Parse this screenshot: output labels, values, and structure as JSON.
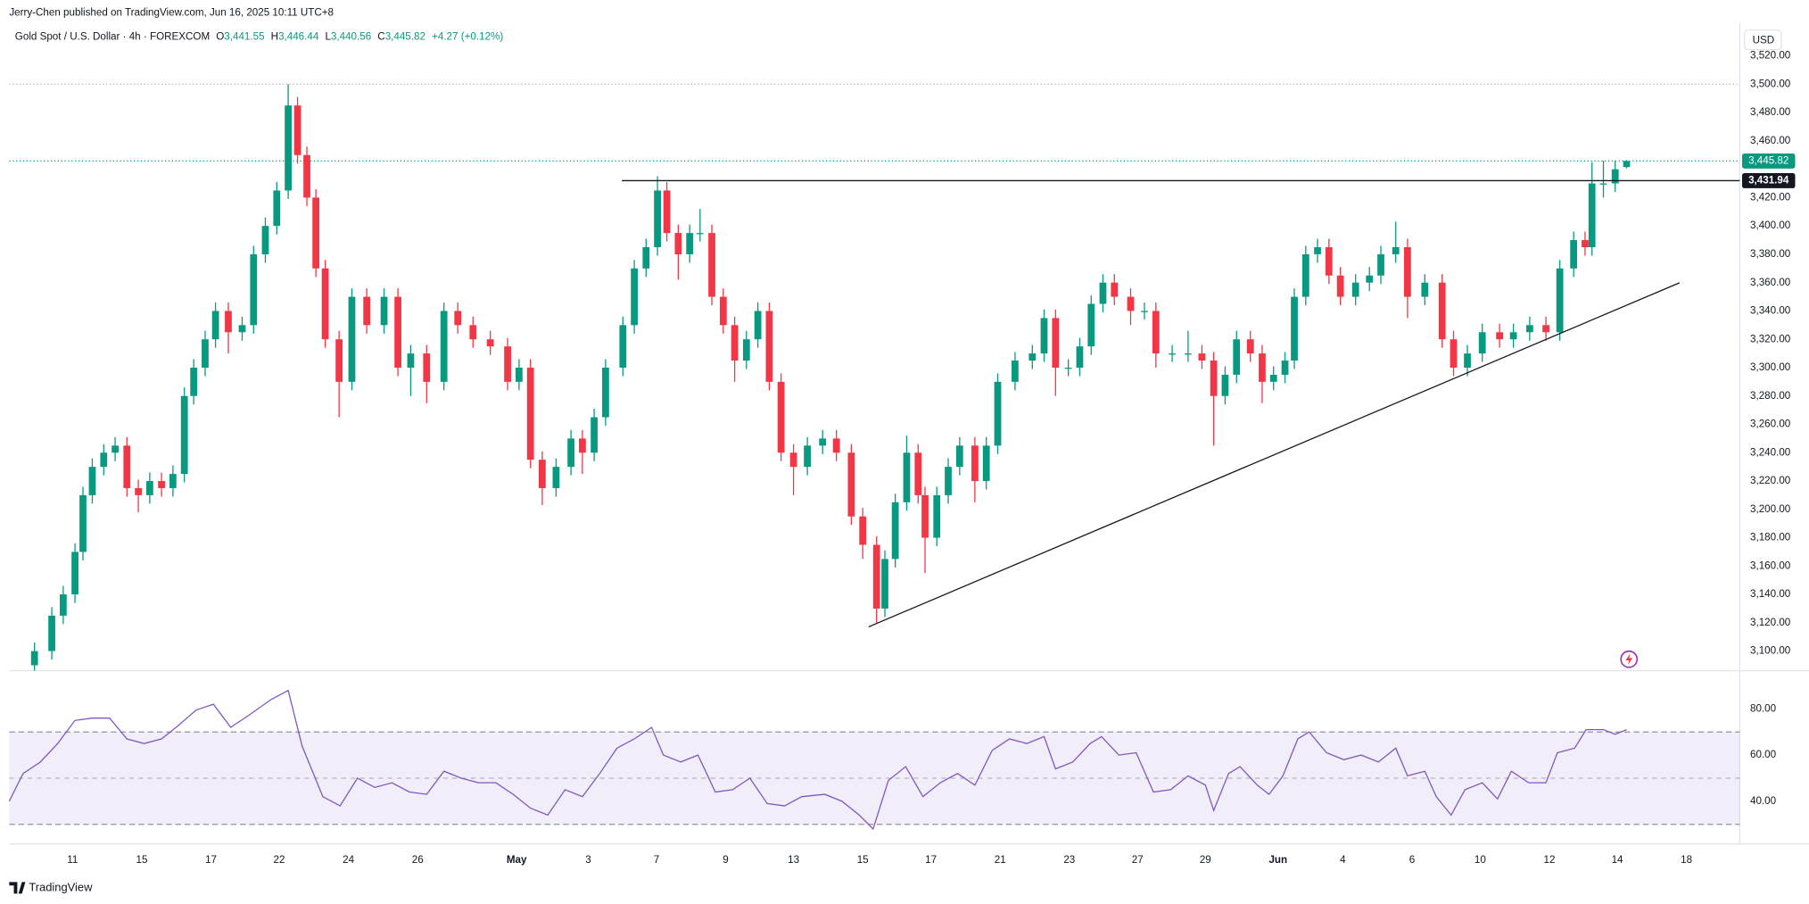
{
  "publisher_note": "Jerry-Chen published on TradingView.com, Jun 16, 2025 10:11 UTC+8",
  "brand": "TradingView",
  "chart_data": [
    {
      "type": "candlestick",
      "symbol": "Gold Spot / U.S. Dollar · 4h · FOREXCOM",
      "ohlc_legend": [
        {
          "label": "O",
          "value": "3,441.55"
        },
        {
          "label": "H",
          "value": "3,446.44"
        },
        {
          "label": "L",
          "value": "3,440.56"
        },
        {
          "label": "C",
          "value": "3,445.82"
        }
      ],
      "change": "+4.27 (+0.12%)",
      "currency": "USD",
      "up_color": "#089981",
      "down_color": "#f23645",
      "x": [
        -0.1,
        0.4,
        0.73,
        1.07,
        1.3,
        1.57,
        1.9,
        2.23,
        2.57,
        2.9,
        3.23,
        3.57,
        3.9,
        4.23,
        4.5,
        4.83,
        5.13,
        5.5,
        5.9,
        6.23,
        6.57,
        6.9,
        7.23,
        7.5,
        7.77,
        8.03,
        8.3,
        8.7,
        9.07,
        9.5,
        10,
        10.4,
        10.77,
        11.23,
        11.73,
        12.13,
        12.57,
        13.07,
        13.57,
        13.9,
        14.23,
        14.57,
        14.97,
        15.4,
        15.73,
        16.07,
        16.4,
        16.9,
        17.23,
        17.57,
        17.9,
        18.17,
        18.5,
        18.83,
        19.13,
        19.47,
        19.8,
        20.13,
        20.47,
        20.8,
        21.13,
        21.47,
        21.83,
        22.23,
        22.67,
        23.07,
        23.5,
        23.83,
        24.23,
        24.47,
        24.77,
        25.1,
        25.43,
        25.63,
        25.97,
        26.3,
        26.63,
        27.07,
        27.4,
        27.73,
        28.23,
        28.73,
        29.07,
        29.4,
        29.77,
        30.1,
        30.43,
        30.77,
        31.1,
        31.57,
        31.97,
        32.3,
        32.77,
        33.23,
        33.63,
        33.97,
        34.3,
        34.63,
        35.03,
        35.37,
        35.7,
        36.03,
        36.3,
        36.63,
        36.97,
        37.3,
        37.63,
        38.07,
        38.47,
        38.8,
        39.23,
        39.57,
        40.07,
        40.57,
        40.9,
        41.3,
        41.73,
        42.23,
        42.63,
        43.1,
        43.57,
        43.97,
        44.37,
        44.7,
        44.9,
        45.23,
        45.57,
        45.9
      ],
      "open": [
        3090,
        3100,
        3125,
        3140,
        3170,
        3210,
        3230,
        3240,
        3245,
        3215,
        3210,
        3220,
        3215,
        3225,
        3280,
        3300,
        3320,
        3340,
        3325,
        3330,
        3380,
        3400,
        3425,
        3485,
        3450,
        3420,
        3370,
        3320,
        3290,
        3350,
        3330,
        3350,
        3300,
        3310,
        3290,
        3340,
        3330,
        3320,
        3315,
        3290,
        3300,
        3235,
        3215,
        3230,
        3250,
        3240,
        3265,
        3300,
        3330,
        3370,
        3385,
        3425,
        3395,
        3380,
        3395,
        3395,
        3350,
        3330,
        3305,
        3320,
        3340,
        3290,
        3240,
        3230,
        3245,
        3250,
        3240,
        3195,
        3175,
        3130,
        3165,
        3205,
        3240,
        3210,
        3180,
        3210,
        3230,
        3245,
        3220,
        3245,
        3290,
        3305,
        3310,
        3335,
        3300,
        3300,
        3315,
        3345,
        3360,
        3350,
        3340,
        3340,
        3310,
        3310,
        3310,
        3305,
        3280,
        3295,
        3320,
        3310,
        3290,
        3295,
        3305,
        3350,
        3380,
        3385,
        3365,
        3350,
        3360,
        3365,
        3380,
        3385,
        3350,
        3360,
        3320,
        3300,
        3310,
        3325,
        3320,
        3325,
        3330,
        3325,
        3370,
        3390,
        3385,
        3430,
        3430,
        3441.55
      ],
      "high": [
        3106,
        3131,
        3146,
        3176,
        3216,
        3236,
        3246,
        3251,
        3251,
        3221,
        3226,
        3226,
        3231,
        3286,
        3306,
        3326,
        3346,
        3346,
        3336,
        3386,
        3406,
        3431,
        3500,
        3491,
        3456,
        3426,
        3376,
        3326,
        3356,
        3356,
        3356,
        3356,
        3316,
        3316,
        3346,
        3346,
        3336,
        3326,
        3321,
        3306,
        3306,
        3241,
        3236,
        3256,
        3256,
        3271,
        3306,
        3336,
        3376,
        3391,
        3435,
        3431,
        3401,
        3401,
        3412,
        3401,
        3356,
        3336,
        3326,
        3346,
        3346,
        3296,
        3246,
        3251,
        3256,
        3256,
        3246,
        3201,
        3181,
        3171,
        3211,
        3252,
        3246,
        3216,
        3216,
        3236,
        3251,
        3251,
        3251,
        3296,
        3311,
        3316,
        3341,
        3341,
        3306,
        3321,
        3351,
        3366,
        3366,
        3356,
        3346,
        3346,
        3316,
        3326,
        3316,
        3311,
        3301,
        3326,
        3326,
        3316,
        3301,
        3311,
        3356,
        3386,
        3391,
        3391,
        3371,
        3366,
        3371,
        3386,
        3403,
        3391,
        3366,
        3366,
        3326,
        3316,
        3331,
        3331,
        3331,
        3336,
        3336,
        3376,
        3396,
        3396,
        3445,
        3446,
        3446,
        3446.44
      ],
      "low": [
        3084,
        3094,
        3119,
        3134,
        3164,
        3204,
        3224,
        3234,
        3209,
        3198,
        3204,
        3209,
        3209,
        3219,
        3274,
        3294,
        3314,
        3310,
        3319,
        3324,
        3374,
        3394,
        3419,
        3444,
        3414,
        3364,
        3314,
        3265,
        3284,
        3324,
        3324,
        3294,
        3280,
        3275,
        3284,
        3324,
        3314,
        3309,
        3284,
        3284,
        3229,
        3203,
        3209,
        3224,
        3225,
        3234,
        3259,
        3294,
        3324,
        3364,
        3379,
        3389,
        3362,
        3374,
        3389,
        3344,
        3324,
        3290,
        3299,
        3314,
        3284,
        3234,
        3210,
        3224,
        3239,
        3234,
        3189,
        3165,
        3120,
        3124,
        3159,
        3199,
        3204,
        3155,
        3174,
        3204,
        3224,
        3205,
        3214,
        3239,
        3284,
        3299,
        3304,
        3280,
        3294,
        3294,
        3309,
        3339,
        3344,
        3330,
        3334,
        3300,
        3304,
        3304,
        3299,
        3245,
        3274,
        3289,
        3304,
        3275,
        3284,
        3289,
        3299,
        3344,
        3374,
        3359,
        3344,
        3344,
        3354,
        3359,
        3374,
        3335,
        3344,
        3314,
        3294,
        3294,
        3304,
        3314,
        3314,
        3319,
        3319,
        3319,
        3364,
        3379,
        3379,
        3420,
        3424,
        3440.56
      ],
      "close": [
        3100,
        3125,
        3140,
        3170,
        3210,
        3230,
        3240,
        3245,
        3215,
        3210,
        3220,
        3215,
        3225,
        3280,
        3300,
        3320,
        3340,
        3325,
        3330,
        3380,
        3400,
        3425,
        3485,
        3450,
        3420,
        3370,
        3320,
        3290,
        3350,
        3330,
        3350,
        3300,
        3310,
        3290,
        3340,
        3330,
        3320,
        3315,
        3290,
        3300,
        3235,
        3215,
        3230,
        3250,
        3240,
        3265,
        3300,
        3330,
        3370,
        3385,
        3425,
        3395,
        3380,
        3395,
        3395,
        3350,
        3330,
        3305,
        3320,
        3340,
        3290,
        3240,
        3230,
        3245,
        3250,
        3240,
        3195,
        3175,
        3130,
        3165,
        3205,
        3240,
        3210,
        3180,
        3210,
        3230,
        3245,
        3220,
        3245,
        3290,
        3305,
        3310,
        3335,
        3300,
        3300,
        3315,
        3345,
        3360,
        3350,
        3340,
        3340,
        3310,
        3310,
        3310,
        3305,
        3280,
        3295,
        3320,
        3310,
        3290,
        3295,
        3305,
        3350,
        3380,
        3385,
        3365,
        3350,
        3360,
        3365,
        3380,
        3385,
        3350,
        3360,
        3320,
        3300,
        3310,
        3325,
        3320,
        3325,
        3330,
        3325,
        3370,
        3390,
        3385,
        3430,
        3430,
        3440,
        3445.82
      ],
      "xlim": [
        -0.83,
        49.17
      ],
      "xticks": [
        {
          "value": 1,
          "label": "11"
        },
        {
          "value": 3,
          "label": "15"
        },
        {
          "value": 5,
          "label": "17"
        },
        {
          "value": 6.97,
          "label": "22"
        },
        {
          "value": 8.97,
          "label": "24"
        },
        {
          "value": 10.97,
          "label": "26"
        },
        {
          "value": 13.83,
          "label": "May"
        },
        {
          "value": 15.9,
          "label": "3"
        },
        {
          "value": 17.87,
          "label": "7"
        },
        {
          "value": 19.87,
          "label": "9"
        },
        {
          "value": 21.83,
          "label": "13"
        },
        {
          "value": 23.83,
          "label": "15"
        },
        {
          "value": 25.8,
          "label": "17"
        },
        {
          "value": 27.8,
          "label": "21"
        },
        {
          "value": 29.8,
          "label": "23"
        },
        {
          "value": 31.77,
          "label": "27"
        },
        {
          "value": 33.73,
          "label": "29"
        },
        {
          "value": 35.83,
          "label": "Jun"
        },
        {
          "value": 37.7,
          "label": "4"
        },
        {
          "value": 39.7,
          "label": "6"
        },
        {
          "value": 41.67,
          "label": "10"
        },
        {
          "value": 43.67,
          "label": "12"
        },
        {
          "value": 45.63,
          "label": "14"
        },
        {
          "value": 47.63,
          "label": "18"
        }
      ],
      "ylim": [
        3086.1,
        3541.5
      ],
      "yticks": [
        {
          "value": 3100,
          "label": "3,100.00"
        },
        {
          "value": 3120,
          "label": "3,120.00"
        },
        {
          "value": 3140,
          "label": "3,140.00"
        },
        {
          "value": 3160,
          "label": "3,160.00"
        },
        {
          "value": 3180,
          "label": "3,180.00"
        },
        {
          "value": 3200,
          "label": "3,200.00"
        },
        {
          "value": 3220,
          "label": "3,220.00"
        },
        {
          "value": 3240,
          "label": "3,240.00"
        },
        {
          "value": 3260,
          "label": "3,260.00"
        },
        {
          "value": 3280,
          "label": "3,280.00"
        },
        {
          "value": 3300,
          "label": "3,300.00"
        },
        {
          "value": 3320,
          "label": "3,320.00"
        },
        {
          "value": 3340,
          "label": "3,340.00"
        },
        {
          "value": 3360,
          "label": "3,360.00"
        },
        {
          "value": 3380,
          "label": "3,380.00"
        },
        {
          "value": 3400,
          "label": "3,400.00"
        },
        {
          "value": 3420,
          "label": "3,420.00"
        },
        {
          "value": 3460,
          "label": "3,460.00"
        },
        {
          "value": 3480,
          "label": "3,480.00"
        },
        {
          "value": 3500,
          "label": "3,500.00"
        },
        {
          "value": 3520,
          "label": "3,520.00"
        }
      ],
      "last_price_label": "3,445.82",
      "high_line": 3500,
      "hline": {
        "value": 3431.94,
        "label": "3,431.94",
        "x_start": 16.87
      },
      "trendline": {
        "x": [
          24,
          47.43
        ],
        "y": [
          3117.1,
          3359.9
        ]
      }
    },
    {
      "type": "line",
      "color": "#7e57c2",
      "x": [
        -0.83,
        -0.43,
        0.07,
        0.57,
        1.07,
        1.57,
        2.07,
        2.57,
        3.07,
        3.57,
        4.07,
        4.57,
        5.07,
        5.57,
        6.07,
        6.73,
        7.23,
        7.63,
        8.23,
        8.73,
        9.23,
        9.73,
        10.23,
        10.73,
        11.23,
        11.73,
        12.23,
        12.73,
        13.23,
        13.73,
        14.23,
        14.73,
        15.23,
        15.73,
        16.23,
        16.73,
        17.23,
        17.73,
        18.07,
        18.57,
        19.07,
        19.57,
        20.07,
        20.57,
        21.07,
        21.57,
        22.07,
        22.73,
        23.23,
        23.73,
        24.13,
        24.57,
        25.07,
        25.57,
        26.07,
        26.57,
        27.07,
        27.57,
        28.07,
        28.57,
        29.07,
        29.4,
        29.9,
        30.4,
        30.73,
        31.23,
        31.73,
        32.23,
        32.73,
        33.23,
        33.73,
        33.97,
        34.4,
        34.73,
        35.23,
        35.57,
        35.97,
        36.4,
        36.73,
        37.23,
        37.73,
        38.23,
        38.73,
        39.23,
        39.57,
        40.07,
        40.4,
        40.83,
        41.23,
        41.73,
        42.17,
        42.57,
        43.07,
        43.57,
        43.9,
        44.4,
        44.73,
        45.23,
        45.57,
        45.9
      ],
      "values": [
        40,
        52,
        57,
        65,
        75,
        76,
        76,
        67,
        65,
        67,
        73,
        79.5,
        82,
        72,
        77,
        84,
        88,
        64,
        42,
        38,
        50,
        46,
        48,
        44,
        43,
        53,
        50,
        48,
        48,
        43,
        37,
        34,
        45,
        42,
        52,
        63,
        67,
        72,
        60,
        57,
        60,
        44,
        45,
        50,
        39,
        38,
        42,
        43,
        40,
        34,
        28,
        49,
        55,
        42,
        48,
        52,
        47,
        62,
        67,
        65,
        68,
        54,
        57,
        65,
        68,
        60,
        61,
        44,
        45,
        51,
        47,
        36,
        52,
        55,
        47,
        43,
        51,
        67,
        70,
        61,
        58,
        60,
        57,
        63,
        51,
        53,
        42,
        34,
        45,
        48,
        41,
        53,
        48,
        48,
        61,
        63,
        71,
        71,
        69,
        71
      ],
      "ylim": [
        22,
        95.5
      ],
      "yticks": [
        {
          "value": 40,
          "label": "40.00"
        },
        {
          "value": 60,
          "label": "60.00"
        },
        {
          "value": 80,
          "label": "80.00"
        }
      ],
      "band_levels": [
        70,
        50,
        30
      ]
    }
  ]
}
